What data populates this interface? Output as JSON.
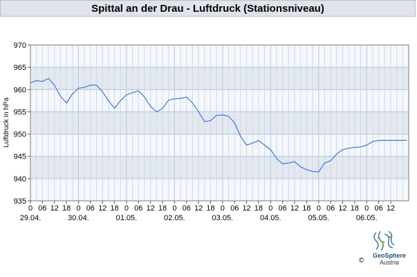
{
  "title": "Spittal an der Drau - Luftdruck (Stationsniveau)",
  "copyright": "©",
  "logo": {
    "name": "GeoSphere",
    "sub": "Austria"
  },
  "chart_data": {
    "type": "line",
    "title": "Spittal an der Drau - Luftdruck (Stationsniveau)",
    "ylabel": "Luftdruck in hPa",
    "xlabel": "",
    "ylim": [
      935,
      970
    ],
    "yticks": [
      935,
      940,
      945,
      950,
      955,
      960,
      965,
      970
    ],
    "xlim": [
      0,
      189
    ],
    "x_tick_labels": [
      "0",
      "06",
      "12",
      "18",
      "0",
      "06",
      "12",
      "18",
      "0",
      "06",
      "12",
      "18",
      "0",
      "06",
      "12",
      "18",
      "0",
      "06",
      "12",
      "18",
      "0",
      "06",
      "12",
      "18",
      "0",
      "06",
      "12",
      "18",
      "0",
      "06",
      "12"
    ],
    "date_labels": [
      "29.04.",
      "30.04.",
      "01.05.",
      "02.05.",
      "03.05.",
      "04.05.",
      "05.05.",
      "06.05."
    ],
    "grid": true,
    "line_color": "#3a78d8",
    "series": [
      {
        "x": [
          0,
          3,
          6,
          9,
          12,
          15,
          18,
          21,
          24,
          27,
          30,
          33,
          36,
          39,
          42,
          45,
          48,
          51,
          54,
          57,
          60,
          63,
          66,
          69,
          72,
          75,
          78,
          81,
          84,
          87,
          90,
          93,
          96,
          99,
          102,
          105,
          108,
          111,
          114,
          117,
          120,
          123,
          126,
          129,
          132,
          135,
          138,
          141,
          144,
          147,
          150,
          153,
          156,
          159,
          162,
          165,
          168,
          171,
          174,
          177,
          180,
          183,
          186,
          188
        ],
        "y": [
          961.5,
          962,
          961.8,
          962.5,
          961,
          958.5,
          957,
          959,
          960.3,
          960.5,
          961,
          961,
          959.5,
          957.5,
          955.8,
          957.5,
          958.8,
          959.3,
          959.7,
          958.3,
          956.2,
          955,
          955.7,
          957.6,
          957.9,
          958,
          958.3,
          957,
          955,
          952.8,
          953,
          954.2,
          954.3,
          954,
          952.5,
          949.5,
          947.5,
          948,
          948.5,
          947.5,
          946.5,
          944.5,
          943.3,
          943.5,
          943.8,
          942.6,
          942,
          941.6,
          941.5,
          943.5,
          944,
          945.5,
          946.5,
          946.8,
          947,
          947.1,
          947.5,
          948.3,
          948.6,
          948.6,
          948.6,
          948.6,
          948.6,
          948.6
        ],
        "note_unused": ""
      }
    ]
  }
}
